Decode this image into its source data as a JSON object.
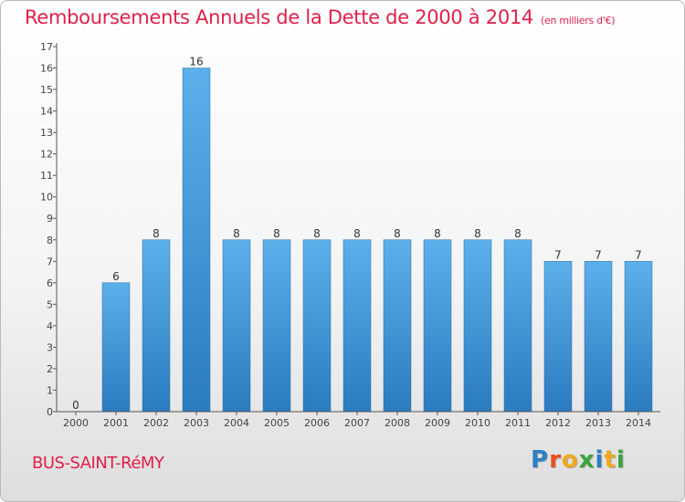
{
  "header": {
    "title": "Remboursements Annuels de la Dette de 2000 à 2014",
    "subtitle": "(en milliers d'€)"
  },
  "footer": {
    "commune": "BUS-SAINT-RéMY",
    "logo_text": "Proxiti",
    "logo_letters": [
      "P",
      "r",
      "o",
      "x",
      "i",
      "t",
      "i"
    ],
    "logo_colors": [
      "#2b7fc3",
      "#e8501e",
      "#f2a81d",
      "#3aa43a",
      "#2b7fc3",
      "#f2a81d",
      "#3aa43a"
    ]
  },
  "colors": {
    "title": "#e0204a",
    "bar_light": "#5cb0ea",
    "bar_dark": "#2b7bbf",
    "axis": "#555555"
  },
  "chart_data": {
    "type": "bar",
    "title": "Remboursements Annuels de la Dette de 2000 à 2014",
    "subtitle": "(en milliers d'€)",
    "categories": [
      "2000",
      "2001",
      "2002",
      "2003",
      "2004",
      "2005",
      "2006",
      "2007",
      "2008",
      "2009",
      "2010",
      "2011",
      "2012",
      "2013",
      "2014"
    ],
    "values": [
      0,
      6,
      8,
      16,
      8,
      8,
      8,
      8,
      8,
      8,
      8,
      8,
      7,
      7,
      7
    ],
    "data_labels": [
      "0",
      "6",
      "8",
      "16",
      "8",
      "8",
      "8",
      "8",
      "8",
      "8",
      "8",
      "8",
      "7",
      "7",
      "7"
    ],
    "yticks": [
      "0",
      "1",
      "2",
      "3",
      "4",
      "5",
      "6",
      "7",
      "8",
      "9",
      "10",
      "11",
      "12",
      "13",
      "14",
      "15",
      "16",
      "17"
    ],
    "ylim": [
      0,
      17
    ],
    "xlabel": "",
    "ylabel": "",
    "grid": false,
    "legend": "none"
  }
}
